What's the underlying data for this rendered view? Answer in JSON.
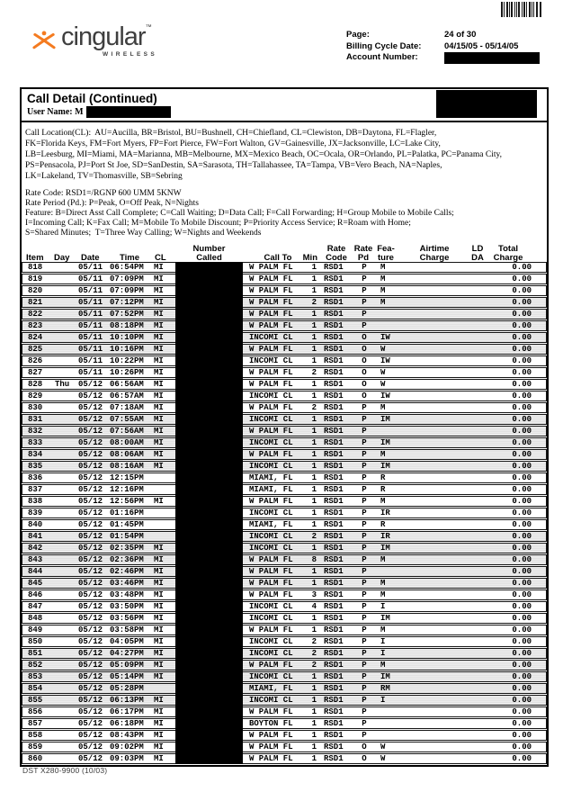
{
  "colors": {
    "brand_orange": "#F47B20"
  },
  "header": {
    "brand": "cingular",
    "brand_tm": "™",
    "brand_sub": "WIRELESS",
    "page_label": "Page:",
    "page_value": "24 of 30",
    "billing_label": "Billing Cycle Date:",
    "billing_value": "04/15/05 - 05/14/05",
    "account_label": "Account Number:"
  },
  "section": {
    "title": "Call Detail (Continued)",
    "user_label": "User Name: M"
  },
  "legend": {
    "call_location_lines": [
      "Call Location(CL):  AU=Aucilla, BR=Bristol, BU=Bushnell, CH=Chiefland, CL=Clewiston, DB=Daytona, FL=Flagler,",
      "FK=Florida Keys, FM=Fort Myers, FP=Fort Pierce, FW=Fort Walton, GV=Gainesville, JX=Jacksonville, LC=Lake City,",
      "LB=Leesburg, MI=Miami, MA=Marianna, MB=Melbourne, MX=Mexico Beach, OC=Ocala, OR=Orlando, PL=Palatka, PC=Panama City,",
      "PS=Pensacola, PJ=Port St Joe, SD=SanDestin, SA=Sarasota, TH=Tallahassee, TA=Tampa, VB=Vero Beach, NA=Naples,",
      "LK=Lakeland, TV=Thomasville, SB=Sebring"
    ],
    "rate_lines": [
      "Rate Code: RSD1=/RGNP 600 UMM 5KNW",
      "Rate Period (Pd.): P=Peak, O=Off Peak, N=Nights",
      "Feature: B=Direct Asst Call Complete; C=Call Waiting; D=Data Call; F=Call Forwarding; H=Group Mobile to Mobile Calls;",
      "I=Incoming Call; K=Fax Call; M=Mobile To Mobile Discount; P=Priority Access Service; R=Roam with Home;",
      "S=Shared Minutes;  T=Three Way Calling; W=Nights and Weekends"
    ]
  },
  "table": {
    "headers": {
      "item": "Item",
      "day": "Day",
      "date": "Date",
      "time": "Time",
      "cl": "CL",
      "number_top": "Number",
      "number_bottom": "Called",
      "call_to": "Call To",
      "min": "Min",
      "rate_code_top": "Rate",
      "rate_code_bottom": "Code",
      "rate_pd_top": "Rate",
      "rate_pd_bottom": "Pd",
      "feature_top": "Fea-",
      "feature_bottom": "ture",
      "airtime_top": "Airtime",
      "airtime_bottom": "Charge",
      "ld_top": "LD",
      "ld_bottom": "DA",
      "total_top": "Total",
      "total_bottom": "Charge"
    },
    "shaded_rows": [
      "821",
      "822",
      "823",
      "824",
      "825",
      "831",
      "832",
      "833",
      "834",
      "835",
      "841",
      "842",
      "843",
      "844",
      "845",
      "851",
      "852",
      "853",
      "854",
      "855"
    ],
    "rows": [
      [
        "818",
        "",
        "05/11",
        "06:54PM",
        "MI",
        "W PALM FL",
        "1",
        "RSD1",
        "P",
        "M",
        "",
        "",
        "0.00"
      ],
      [
        "819",
        "",
        "05/11",
        "07:09PM",
        "MI",
        "W PALM FL",
        "1",
        "RSD1",
        "P",
        "M",
        "",
        "",
        "0.00"
      ],
      [
        "820",
        "",
        "05/11",
        "07:09PM",
        "MI",
        "W PALM FL",
        "1",
        "RSD1",
        "P",
        "M",
        "",
        "",
        "0.00"
      ],
      [
        "821",
        "",
        "05/11",
        "07:12PM",
        "MI",
        "W PALM FL",
        "2",
        "RSD1",
        "P",
        "M",
        "",
        "",
        "0.00"
      ],
      [
        "822",
        "",
        "05/11",
        "07:52PM",
        "MI",
        "W PALM FL",
        "1",
        "RSD1",
        "P",
        "",
        "",
        "",
        "0.00"
      ],
      [
        "823",
        "",
        "05/11",
        "08:18PM",
        "MI",
        "W PALM FL",
        "1",
        "RSD1",
        "P",
        "",
        "",
        "",
        "0.00"
      ],
      [
        "824",
        "",
        "05/11",
        "10:10PM",
        "MI",
        "INCOMI CL",
        "1",
        "RSD1",
        "O",
        "IW",
        "",
        "",
        "0.00"
      ],
      [
        "825",
        "",
        "05/11",
        "10:16PM",
        "MI",
        "W PALM FL",
        "1",
        "RSD1",
        "O",
        "W",
        "",
        "",
        "0.00"
      ],
      [
        "826",
        "",
        "05/11",
        "10:22PM",
        "MI",
        "INCOMI CL",
        "1",
        "RSD1",
        "O",
        "IW",
        "",
        "",
        "0.00"
      ],
      [
        "827",
        "",
        "05/11",
        "10:26PM",
        "MI",
        "W PALM FL",
        "2",
        "RSD1",
        "O",
        "W",
        "",
        "",
        "0.00"
      ],
      [
        "828",
        "Thu",
        "05/12",
        "06:56AM",
        "MI",
        "W PALM FL",
        "1",
        "RSD1",
        "O",
        "W",
        "",
        "",
        "0.00"
      ],
      [
        "829",
        "",
        "05/12",
        "06:57AM",
        "MI",
        "INCOMI CL",
        "1",
        "RSD1",
        "O",
        "IW",
        "",
        "",
        "0.00"
      ],
      [
        "830",
        "",
        "05/12",
        "07:18AM",
        "MI",
        "W PALM FL",
        "2",
        "RSD1",
        "P",
        "M",
        "",
        "",
        "0.00"
      ],
      [
        "831",
        "",
        "05/12",
        "07:55AM",
        "MI",
        "INCOMI CL",
        "1",
        "RSD1",
        "P",
        "IM",
        "",
        "",
        "0.00"
      ],
      [
        "832",
        "",
        "05/12",
        "07:56AM",
        "MI",
        "W PALM FL",
        "1",
        "RSD1",
        "P",
        "",
        "",
        "",
        "0.00"
      ],
      [
        "833",
        "",
        "05/12",
        "08:00AM",
        "MI",
        "INCOMI CL",
        "1",
        "RSD1",
        "P",
        "IM",
        "",
        "",
        "0.00"
      ],
      [
        "834",
        "",
        "05/12",
        "08:06AM",
        "MI",
        "W PALM FL",
        "1",
        "RSD1",
        "P",
        "M",
        "",
        "",
        "0.00"
      ],
      [
        "835",
        "",
        "05/12",
        "08:16AM",
        "MI",
        "INCOMI CL",
        "1",
        "RSD1",
        "P",
        "IM",
        "",
        "",
        "0.00"
      ],
      [
        "836",
        "",
        "05/12",
        "12:15PM",
        "",
        "MIAMI, FL",
        "1",
        "RSD1",
        "P",
        "R",
        "",
        "",
        "0.00"
      ],
      [
        "837",
        "",
        "05/12",
        "12:16PM",
        "",
        "MIAMI, FL",
        "1",
        "RSD1",
        "P",
        "R",
        "",
        "",
        "0.00"
      ],
      [
        "838",
        "",
        "05/12",
        "12:56PM",
        "MI",
        "W PALM FL",
        "1",
        "RSD1",
        "P",
        "M",
        "",
        "",
        "0.00"
      ],
      [
        "839",
        "",
        "05/12",
        "01:16PM",
        "",
        "INCOMI CL",
        "1",
        "RSD1",
        "P",
        "IR",
        "",
        "",
        "0.00"
      ],
      [
        "840",
        "",
        "05/12",
        "01:45PM",
        "",
        "MIAMI, FL",
        "1",
        "RSD1",
        "P",
        "R",
        "",
        "",
        "0.00"
      ],
      [
        "841",
        "",
        "05/12",
        "01:54PM",
        "",
        "INCOMI CL",
        "2",
        "RSD1",
        "P",
        "IR",
        "",
        "",
        "0.00"
      ],
      [
        "842",
        "",
        "05/12",
        "02:35PM",
        "MI",
        "INCOMI CL",
        "1",
        "RSD1",
        "P",
        "IM",
        "",
        "",
        "0.00"
      ],
      [
        "843",
        "",
        "05/12",
        "02:36PM",
        "MI",
        "W PALM FL",
        "8",
        "RSD1",
        "P",
        "M",
        "",
        "",
        "0.00"
      ],
      [
        "844",
        "",
        "05/12",
        "02:46PM",
        "MI",
        "W PALM FL",
        "1",
        "RSD1",
        "P",
        "",
        "",
        "",
        "0.00"
      ],
      [
        "845",
        "",
        "05/12",
        "03:46PM",
        "MI",
        "W PALM FL",
        "1",
        "RSD1",
        "P",
        "M",
        "",
        "",
        "0.00"
      ],
      [
        "846",
        "",
        "05/12",
        "03:48PM",
        "MI",
        "W PALM FL",
        "3",
        "RSD1",
        "P",
        "M",
        "",
        "",
        "0.00"
      ],
      [
        "847",
        "",
        "05/12",
        "03:50PM",
        "MI",
        "INCOMI CL",
        "4",
        "RSD1",
        "P",
        "I",
        "",
        "",
        "0.00"
      ],
      [
        "848",
        "",
        "05/12",
        "03:56PM",
        "MI",
        "INCOMI CL",
        "1",
        "RSD1",
        "P",
        "IM",
        "",
        "",
        "0.00"
      ],
      [
        "849",
        "",
        "05/12",
        "03:58PM",
        "MI",
        "W PALM FL",
        "1",
        "RSD1",
        "P",
        "M",
        "",
        "",
        "0.00"
      ],
      [
        "850",
        "",
        "05/12",
        "04:05PM",
        "MI",
        "INCOMI CL",
        "2",
        "RSD1",
        "P",
        "I",
        "",
        "",
        "0.00"
      ],
      [
        "851",
        "",
        "05/12",
        "04:27PM",
        "MI",
        "INCOMI CL",
        "2",
        "RSD1",
        "P",
        "I",
        "",
        "",
        "0.00"
      ],
      [
        "852",
        "",
        "05/12",
        "05:09PM",
        "MI",
        "W PALM FL",
        "2",
        "RSD1",
        "P",
        "M",
        "",
        "",
        "0.00"
      ],
      [
        "853",
        "",
        "05/12",
        "05:14PM",
        "MI",
        "INCOMI CL",
        "1",
        "RSD1",
        "P",
        "IM",
        "",
        "",
        "0.00"
      ],
      [
        "854",
        "",
        "05/12",
        "05:28PM",
        "",
        "MIAMI, FL",
        "1",
        "RSD1",
        "P",
        "RM",
        "",
        "",
        "0.00"
      ],
      [
        "855",
        "",
        "05/12",
        "06:13PM",
        "MI",
        "INCOMI CL",
        "1",
        "RSD1",
        "P",
        "I",
        "",
        "",
        "0.00"
      ],
      [
        "856",
        "",
        "05/12",
        "06:17PM",
        "MI",
        "W PALM FL",
        "1",
        "RSD1",
        "P",
        "",
        "",
        "",
        "0.00"
      ],
      [
        "857",
        "",
        "05/12",
        "06:18PM",
        "MI",
        "BOYTON FL",
        "1",
        "RSD1",
        "P",
        "",
        "",
        "",
        "0.00"
      ],
      [
        "858",
        "",
        "05/12",
        "08:43PM",
        "MI",
        "W PALM FL",
        "1",
        "RSD1",
        "P",
        "",
        "",
        "",
        "0.00"
      ],
      [
        "859",
        "",
        "05/12",
        "09:02PM",
        "MI",
        "W PALM FL",
        "1",
        "RSD1",
        "O",
        "W",
        "",
        "",
        "0.00"
      ],
      [
        "860",
        "",
        "05/12",
        "09:03PM",
        "MI",
        "W PALM FL",
        "1",
        "RSD1",
        "O",
        "W",
        "",
        "",
        "0.00"
      ]
    ]
  },
  "footer": {
    "form_code": "DST X280-9900 (10/03)"
  }
}
